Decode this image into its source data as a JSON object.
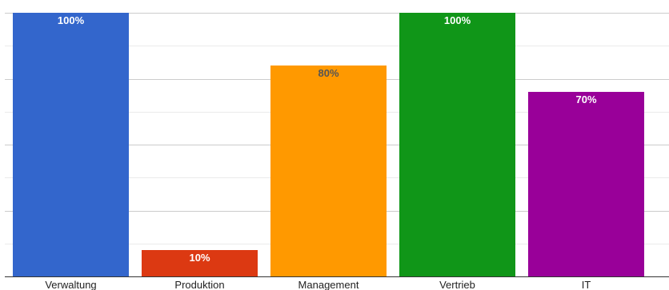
{
  "chart_data": {
    "type": "bar",
    "categories": [
      "Verwaltung",
      "Produktion",
      "Management",
      "Vertrieb",
      "IT"
    ],
    "values": [
      100,
      10,
      80,
      100,
      70
    ],
    "data_labels": [
      "100%",
      "10%",
      "80%",
      "100%",
      "70%"
    ],
    "colors": [
      "#3366cc",
      "#dc3912",
      "#ff9900",
      "#109618",
      "#990099"
    ],
    "label_colors": [
      "#ffffff",
      "#ffffff",
      "#555555",
      "#ffffff",
      "#ffffff"
    ],
    "ylim": [
      0,
      100
    ],
    "grid": true,
    "legend": "none"
  }
}
